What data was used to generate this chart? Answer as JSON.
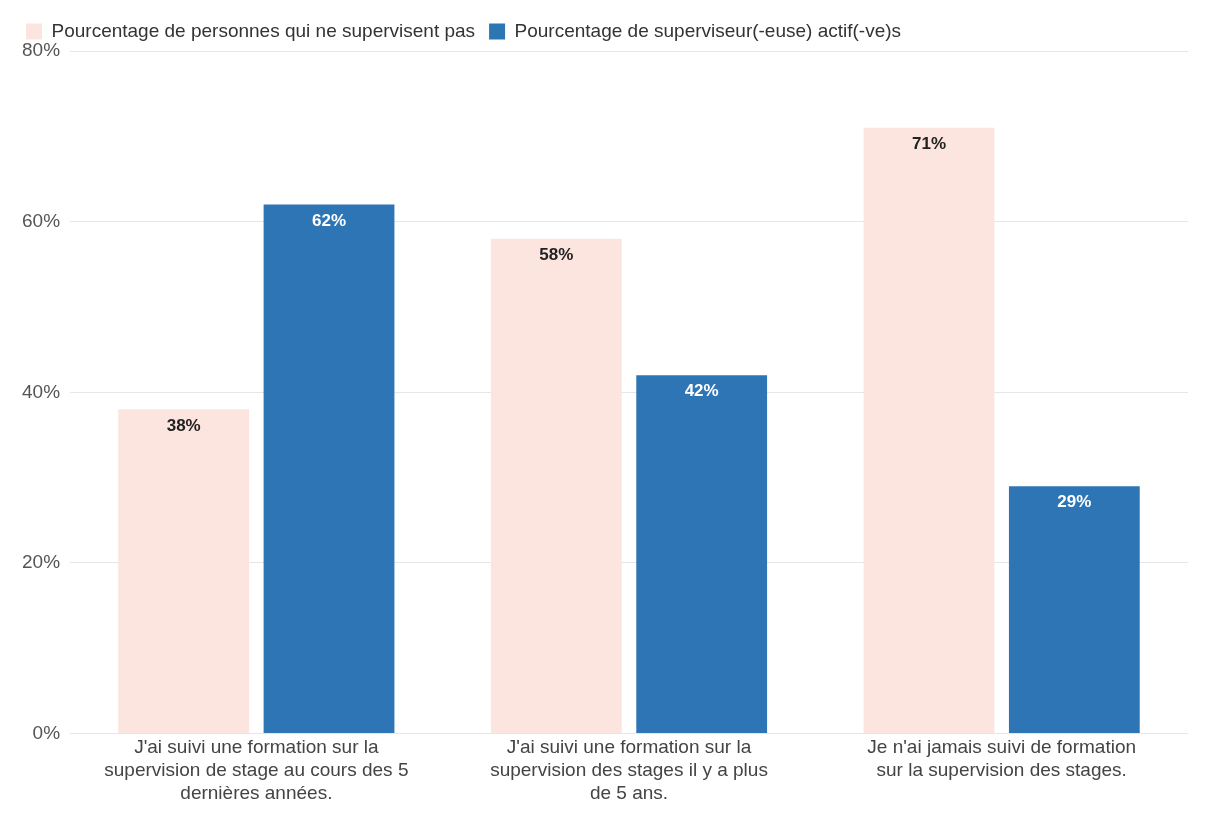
{
  "chart_data": {
    "type": "bar",
    "categories": [
      "J'ai suivi une formation sur la supervision de stage au cours des 5 dernières années.",
      "J'ai suivi une formation sur la supervision des stages il y a plus de 5 ans.",
      "Je n'ai jamais suivi de formation sur la supervision des stages."
    ],
    "series": [
      {
        "name": "Pourcentage de personnes qui ne supervisent pas",
        "color": "#fce4df",
        "values": [
          38,
          58,
          71
        ]
      },
      {
        "name": "Pourcentage de superviseur(-euse) actif(-ve)s",
        "color": "#2e75b6",
        "values": [
          62,
          42,
          29
        ]
      }
    ],
    "ylim": [
      0,
      80
    ],
    "yticks": [
      {
        "value": 0,
        "label": "0%"
      },
      {
        "value": 20,
        "label": "20%"
      },
      {
        "value": 40,
        "label": "40%"
      },
      {
        "value": 60,
        "label": "60%"
      },
      {
        "value": 80,
        "label": "80%"
      }
    ],
    "value_labels": [
      [
        "38%",
        "58%",
        "71%"
      ],
      [
        "62%",
        "42%",
        "29%"
      ]
    ],
    "grid": "y",
    "legend": "top left"
  }
}
